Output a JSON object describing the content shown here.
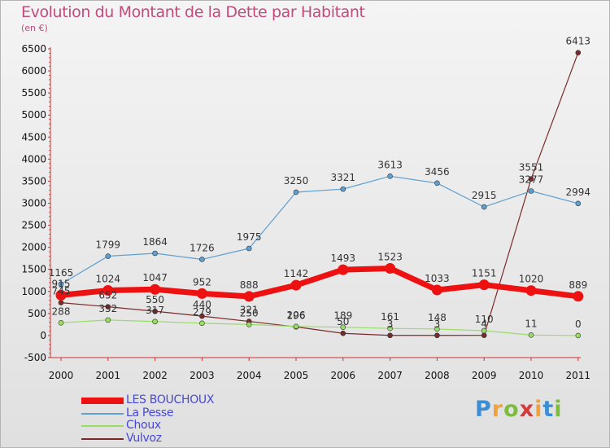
{
  "title": "Evolution du Montant de la Dette par Habitant",
  "subtitle": "(en €)",
  "logo_text": "Proxiti",
  "chart_data": {
    "type": "line",
    "title": "Evolution du Montant de la Dette par Habitant",
    "subtitle": "(en €)",
    "xlabel": "",
    "ylabel": "",
    "x": [
      "2000",
      "2001",
      "2002",
      "2003",
      "2004",
      "2005",
      "2006",
      "2007",
      "2008",
      "2009",
      "2010",
      "2011"
    ],
    "ylim": [
      -500,
      6500
    ],
    "yticks": [
      -500,
      0,
      500,
      1000,
      1500,
      2000,
      2500,
      3000,
      3500,
      4000,
      4500,
      5000,
      5500,
      6000,
      6500
    ],
    "grid": false,
    "legend_position": "bottom-left",
    "series": [
      {
        "name": "LES BOUCHOUX",
        "color": "#ee1111",
        "values": [
          915,
          1024,
          1047,
          952,
          888,
          1142,
          1493,
          1523,
          1033,
          1151,
          1020,
          889
        ]
      },
      {
        "name": "La Pesse",
        "color": "#5fa0d0",
        "values": [
          1165,
          1799,
          1864,
          1726,
          1975,
          3250,
          3321,
          3613,
          3456,
          2915,
          3277,
          2994
        ]
      },
      {
        "name": "Choux",
        "color": "#99dd66",
        "values": [
          288,
          352,
          317,
          279,
          250,
          206,
          189,
          161,
          148,
          110,
          11,
          0
        ]
      },
      {
        "name": "Vulvoz",
        "color": "#7a2a2a",
        "values": [
          745,
          652,
          550,
          440,
          321,
          196,
          50,
          3,
          3,
          4,
          3551,
          6413
        ]
      }
    ]
  }
}
